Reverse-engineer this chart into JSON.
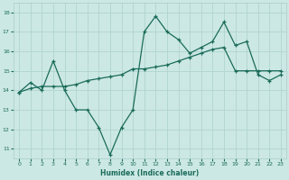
{
  "xlabel": "Humidex (Indice chaleur)",
  "ylabel": "",
  "bg_color": "#cce8e4",
  "grid_color": "#b0d4ce",
  "line_color": "#1a6b5a",
  "xlim": [
    -0.5,
    23.5
  ],
  "ylim": [
    10.5,
    18.5
  ],
  "xticks": [
    0,
    1,
    2,
    3,
    4,
    5,
    6,
    7,
    8,
    9,
    10,
    11,
    12,
    13,
    14,
    15,
    16,
    17,
    18,
    19,
    20,
    21,
    22,
    23
  ],
  "yticks": [
    11,
    12,
    13,
    14,
    15,
    16,
    17,
    18
  ],
  "line1_x": [
    0,
    1,
    2,
    3,
    4,
    5,
    6,
    7,
    8,
    9,
    10,
    11,
    12,
    13,
    14,
    15,
    16,
    17,
    18,
    19,
    20,
    21,
    22,
    23
  ],
  "line1_y": [
    13.9,
    14.4,
    14.0,
    15.5,
    14.0,
    13.0,
    13.0,
    12.1,
    10.7,
    12.1,
    13.0,
    17.0,
    17.8,
    17.0,
    16.6,
    15.9,
    16.2,
    16.5,
    17.5,
    16.3,
    16.5,
    14.8,
    14.5,
    14.8
  ],
  "line2_x": [
    0,
    1,
    2,
    3,
    4,
    5,
    6,
    7,
    8,
    9,
    10,
    11,
    12,
    13,
    14,
    15,
    16,
    17,
    18,
    19,
    20,
    21,
    22,
    23
  ],
  "line2_y": [
    13.9,
    14.1,
    14.2,
    14.2,
    14.2,
    14.3,
    14.5,
    14.6,
    14.7,
    14.8,
    15.1,
    15.1,
    15.2,
    15.3,
    15.5,
    15.7,
    15.9,
    16.1,
    16.2,
    15.0,
    15.0,
    15.0,
    15.0,
    15.0
  ]
}
